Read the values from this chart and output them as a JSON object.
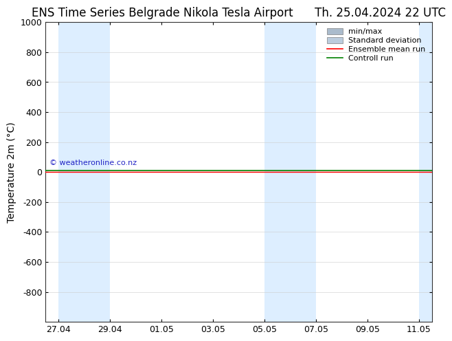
{
  "title_left": "ENS Time Series Belgrade Nikola Tesla Airport",
  "title_right": "Th. 25.04.2024 22 UTC",
  "ylabel": "Temperature 2m (°C)",
  "ylim_top": -1000,
  "ylim_bottom": 1000,
  "yticks": [
    -800,
    -600,
    -400,
    -200,
    0,
    200,
    400,
    600,
    800,
    1000
  ],
  "xlabel_dates": [
    "27.04",
    "29.04",
    "01.05",
    "03.05",
    "05.05",
    "07.05",
    "09.05",
    "11.05"
  ],
  "x_values": [
    0,
    2,
    4,
    6,
    8,
    10,
    12,
    14
  ],
  "shade_intervals": [
    [
      0,
      2
    ],
    [
      8,
      10
    ],
    [
      14,
      16
    ]
  ],
  "shade_color": "#ddeeff",
  "background_color": "#ffffff",
  "plot_bg_color": "#ffffff",
  "ensemble_mean_color": "#ff0000",
  "control_run_color": "#008000",
  "copyright_text": "© weatheronline.co.nz",
  "copyright_color": "#0000bb",
  "legend_minmax_color": "#aabbcc",
  "legend_std_color": "#bbccdd",
  "title_fontsize": 12,
  "axis_fontsize": 10,
  "tick_fontsize": 9,
  "x_min": -0.5,
  "x_max": 14.5
}
